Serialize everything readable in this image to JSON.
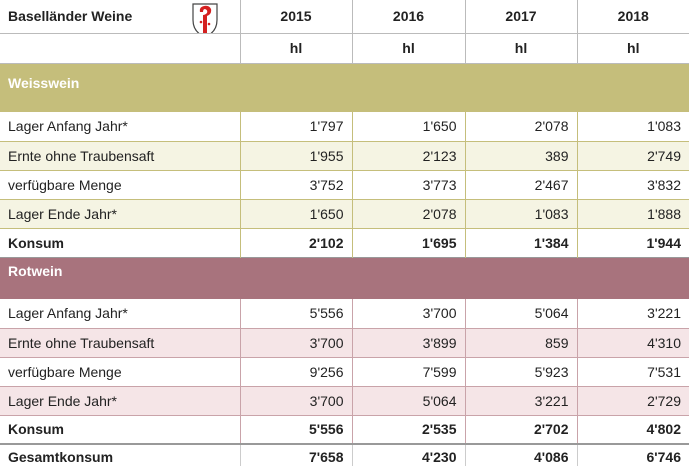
{
  "header": {
    "title": "Baselländer Weine",
    "years": [
      "2015",
      "2016",
      "2017",
      "2018"
    ],
    "units": [
      "hl",
      "hl",
      "hl",
      "hl"
    ]
  },
  "sections": [
    {
      "name": "Weisswein",
      "rows": [
        {
          "label": "Lager Anfang Jahr*",
          "values": [
            "1'797",
            "1'650",
            "2'078",
            "1'083"
          ]
        },
        {
          "label": "Ernte ohne Traubensaft",
          "values": [
            "1'955",
            "2'123",
            "389",
            "2'749"
          ]
        },
        {
          "label": "verfügbare Menge",
          "values": [
            "3'752",
            "3'773",
            "2'467",
            "3'832"
          ]
        },
        {
          "label": "Lager Ende Jahr*",
          "values": [
            "1'650",
            "2'078",
            "1'083",
            "1'888"
          ]
        },
        {
          "label": "Konsum",
          "values": [
            "2'102",
            "1'695",
            "1'384",
            "1'944"
          ]
        }
      ]
    },
    {
      "name": "Rotwein",
      "rows": [
        {
          "label": "Lager Anfang Jahr*",
          "values": [
            "5'556",
            "3'700",
            "5'064",
            "3'221"
          ]
        },
        {
          "label": "Ernte ohne Traubensaft",
          "values": [
            "3'700",
            "3'899",
            "859",
            "4'310"
          ]
        },
        {
          "label": "verfügbare Menge",
          "values": [
            "9'256",
            "7'599",
            "5'923",
            "7'531"
          ]
        },
        {
          "label": "Lager Ende Jahr*",
          "values": [
            "3'700",
            "5'064",
            "3'221",
            "2'729"
          ]
        },
        {
          "label": "Konsum",
          "values": [
            "5'556",
            "2'535",
            "2'702",
            "4'802"
          ]
        }
      ]
    }
  ],
  "total": {
    "label": "Gesamtkonsum",
    "values": [
      "7'658",
      "4'230",
      "4'086",
      "6'746"
    ]
  }
}
